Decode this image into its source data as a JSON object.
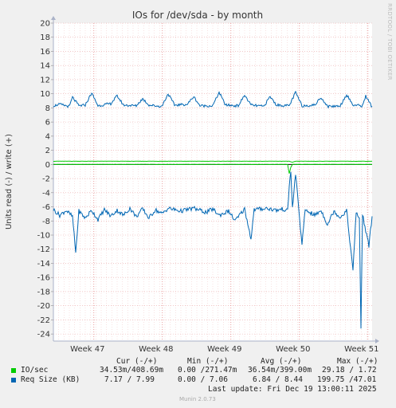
{
  "chart_data": {
    "type": "line",
    "title": "IOs for /dev/sda - by month",
    "ylabel": "Units read (-) / write (+)",
    "ylim": [
      -25,
      20
    ],
    "yticks": [
      20,
      18,
      16,
      14,
      12,
      10,
      8,
      6,
      4,
      2,
      0,
      -2,
      -4,
      -6,
      -8,
      -10,
      -12,
      -14,
      -16,
      -18,
      -20,
      -22,
      -24
    ],
    "xlim": [
      0,
      1
    ],
    "xticks": [
      {
        "label": "Week 47",
        "x": 0.127
      },
      {
        "label": "Week 48",
        "x": 0.342
      },
      {
        "label": "Week 49",
        "x": 0.557
      },
      {
        "label": "Week 50",
        "x": 0.772
      },
      {
        "label": "Week 51",
        "x": 0.987
      }
    ],
    "grid": true,
    "series": [
      {
        "name": "IO/sec",
        "color": "#00cc00",
        "write_profile": [
          [
            0,
            0.45
          ],
          [
            0.74,
            0.45
          ],
          [
            0.75,
            0.3
          ],
          [
            0.76,
            0.45
          ],
          [
            1,
            0.45
          ]
        ],
        "read_profile": [
          [
            0,
            0
          ],
          [
            0.735,
            0
          ],
          [
            0.74,
            -1.3
          ],
          [
            0.745,
            -0.4
          ],
          [
            0.75,
            0
          ],
          [
            1,
            0
          ]
        ]
      },
      {
        "name": "Req Size (KB)",
        "color": "#0066b3",
        "write_profile": [
          [
            0,
            8.3
          ],
          [
            0.02,
            8.5
          ],
          [
            0.05,
            8.2
          ],
          [
            0.06,
            9.5
          ],
          [
            0.08,
            8.3
          ],
          [
            0.1,
            8.4
          ],
          [
            0.12,
            10.1
          ],
          [
            0.14,
            8.3
          ],
          [
            0.18,
            8.6
          ],
          [
            0.2,
            9.7
          ],
          [
            0.22,
            8.4
          ],
          [
            0.26,
            8.3
          ],
          [
            0.28,
            9.3
          ],
          [
            0.3,
            8.4
          ],
          [
            0.34,
            8.2
          ],
          [
            0.36,
            10.0
          ],
          [
            0.38,
            8.4
          ],
          [
            0.42,
            8.5
          ],
          [
            0.44,
            9.6
          ],
          [
            0.46,
            8.3
          ],
          [
            0.5,
            8.3
          ],
          [
            0.52,
            10.2
          ],
          [
            0.54,
            8.4
          ],
          [
            0.58,
            8.3
          ],
          [
            0.6,
            9.8
          ],
          [
            0.62,
            8.4
          ],
          [
            0.66,
            8.2
          ],
          [
            0.68,
            9.6
          ],
          [
            0.7,
            8.4
          ],
          [
            0.74,
            8.3
          ],
          [
            0.76,
            10.2
          ],
          [
            0.78,
            8.3
          ],
          [
            0.82,
            8.4
          ],
          [
            0.84,
            9.5
          ],
          [
            0.86,
            8.2
          ],
          [
            0.9,
            8.3
          ],
          [
            0.92,
            9.9
          ],
          [
            0.94,
            8.4
          ],
          [
            0.97,
            8.3
          ],
          [
            0.98,
            9.7
          ],
          [
            1.0,
            8.1
          ]
        ],
        "read_profile": [
          [
            0,
            -6.4
          ],
          [
            0.02,
            -7.2
          ],
          [
            0.04,
            -6.5
          ],
          [
            0.06,
            -7.4
          ],
          [
            0.07,
            -12.5
          ],
          [
            0.08,
            -6.6
          ],
          [
            0.1,
            -7.6
          ],
          [
            0.12,
            -6.5
          ],
          [
            0.14,
            -7.8
          ],
          [
            0.16,
            -6.4
          ],
          [
            0.18,
            -7.3
          ],
          [
            0.2,
            -6.5
          ],
          [
            0.22,
            -7.2
          ],
          [
            0.24,
            -6.2
          ],
          [
            0.26,
            -7.4
          ],
          [
            0.28,
            -6.3
          ],
          [
            0.3,
            -7.6
          ],
          [
            0.32,
            -6.4
          ],
          [
            0.34,
            -7.0
          ],
          [
            0.36,
            -6.2
          ],
          [
            0.4,
            -6.6
          ],
          [
            0.44,
            -6.2
          ],
          [
            0.48,
            -6.8
          ],
          [
            0.5,
            -6.3
          ],
          [
            0.52,
            -7.2
          ],
          [
            0.55,
            -6.6
          ],
          [
            0.57,
            -8.0
          ],
          [
            0.6,
            -6.3
          ],
          [
            0.62,
            -10.5
          ],
          [
            0.63,
            -6.4
          ],
          [
            0.67,
            -6.2
          ],
          [
            0.7,
            -6.5
          ],
          [
            0.72,
            -6.3
          ],
          [
            0.735,
            -6.6
          ],
          [
            0.74,
            -3.0
          ],
          [
            0.745,
            -1.0
          ],
          [
            0.75,
            -6.2
          ],
          [
            0.76,
            -1.3
          ],
          [
            0.77,
            -6.3
          ],
          [
            0.78,
            -11.5
          ],
          [
            0.79,
            -6.4
          ],
          [
            0.82,
            -7.2
          ],
          [
            0.84,
            -6.5
          ],
          [
            0.86,
            -8.5
          ],
          [
            0.88,
            -6.6
          ],
          [
            0.9,
            -7.5
          ],
          [
            0.92,
            -6.5
          ],
          [
            0.94,
            -15.0
          ],
          [
            0.95,
            -6.8
          ],
          [
            0.96,
            -7.6
          ],
          [
            0.965,
            -23.2
          ],
          [
            0.97,
            -7.0
          ],
          [
            0.98,
            -9.5
          ],
          [
            0.99,
            -11.5
          ],
          [
            1.0,
            -7.3
          ]
        ]
      }
    ]
  },
  "side_label": "RRDTOOL / TOBI OETIKER",
  "legend": {
    "headers": [
      "Cur (-/+)",
      "Min (-/+)",
      "Avg (-/+)",
      "Max (-/+)"
    ],
    "rows": [
      {
        "name": "IO/sec",
        "color": "#00cc00",
        "cur": "34.53m/408.69m",
        "min": "0.00 /271.47m",
        "avg": "36.54m/399.00m",
        "max": "29.18 / 1.72"
      },
      {
        "name": "Req Size (KB)",
        "color": "#0066b3",
        "cur": "7.17 / 7.99",
        "min": "0.00 / 7.06",
        "avg": "6.84 / 8.44",
        "max": "199.75 /47.01"
      }
    ],
    "last_update": "Last update: Fri Dec 19 13:00:11 2025"
  },
  "footer": "Munin 2.0.73"
}
